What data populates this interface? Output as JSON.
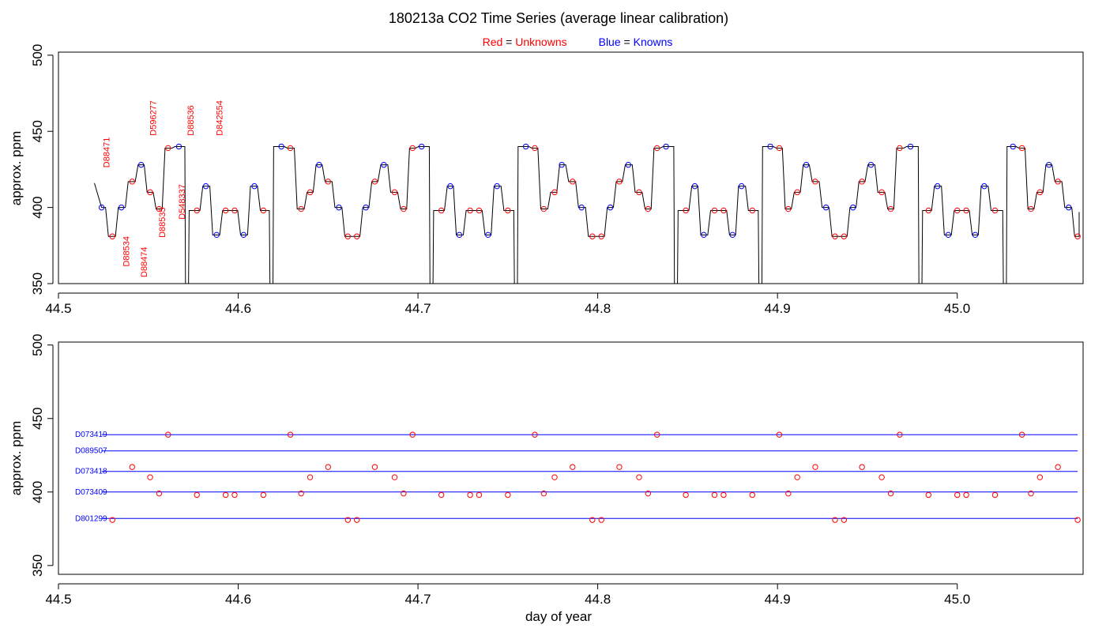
{
  "chart_data": [
    {
      "type": "line",
      "title": "180213a   CO2 Time Series (average linear calibration)",
      "subtitle": {
        "red": {
          "word": "Red",
          "eq": " = ",
          "label": "Unknowns",
          "color": "#ff0000"
        },
        "blue": {
          "word": "Blue",
          "eq": " = ",
          "label": "Knowns",
          "color": "#0000ff"
        }
      },
      "ylabel": "approx. ppm",
      "xlabel": "",
      "xlim": [
        44.5,
        45.07
      ],
      "ylim": [
        350,
        502
      ],
      "xticks": [
        "44.5",
        "44.6",
        "44.7",
        "44.8",
        "44.9",
        "45.0"
      ],
      "yticks": [
        "350",
        "400",
        "450",
        "500"
      ],
      "grid": false,
      "trace_color": "#000000",
      "series": [
        {
          "name": "Unknowns",
          "color": "#ff0000",
          "x": [
            44.53,
            44.541,
            44.551,
            44.556,
            44.561,
            44.577,
            44.593,
            44.598,
            44.614,
            44.629,
            44.635,
            44.64,
            44.65,
            44.661,
            44.666,
            44.676,
            44.687,
            44.692,
            44.697,
            44.713,
            44.729,
            44.734,
            44.75,
            44.765,
            44.77,
            44.776,
            44.786,
            44.797,
            44.802,
            44.812,
            44.823,
            44.828,
            44.833,
            44.849,
            44.865,
            44.87,
            44.886,
            44.901,
            44.906,
            44.911,
            44.921,
            44.932,
            44.937,
            44.947,
            44.958,
            44.963,
            44.968,
            44.984,
            45.0,
            45.005,
            45.021,
            45.036,
            45.041,
            45.046,
            45.056,
            45.067
          ],
          "y": [
            381,
            417,
            410,
            399,
            439,
            398,
            398,
            398,
            398,
            439,
            399,
            410,
            417,
            381,
            381,
            417,
            410,
            399,
            439,
            398,
            398,
            398,
            398,
            439,
            399,
            410,
            417,
            381,
            381,
            417,
            410,
            399,
            439,
            398,
            398,
            398,
            398,
            439,
            399,
            410,
            417,
            381,
            381,
            417,
            410,
            399,
            439,
            398,
            398,
            398,
            398,
            439,
            399,
            410,
            417,
            381
          ]
        },
        {
          "name": "Knowns",
          "color": "#0000ff",
          "x": [
            44.524,
            44.535,
            44.546,
            44.567,
            44.582,
            44.588,
            44.603,
            44.609,
            44.624,
            44.645,
            44.656,
            44.671,
            44.681,
            44.702,
            44.718,
            44.723,
            44.739,
            44.744,
            44.76,
            44.78,
            44.791,
            44.807,
            44.817,
            44.838,
            44.854,
            44.859,
            44.875,
            44.88,
            44.896,
            44.916,
            44.927,
            44.942,
            44.952,
            44.974,
            44.989,
            44.995,
            45.01,
            45.015,
            45.031,
            45.051,
            45.062
          ],
          "y": [
            400,
            400,
            428,
            440,
            414,
            382,
            382,
            414,
            440,
            428,
            400,
            400,
            428,
            440,
            414,
            382,
            382,
            414,
            440,
            428,
            400,
            400,
            428,
            440,
            414,
            382,
            382,
            414,
            440,
            428,
            400,
            400,
            428,
            440,
            414,
            382,
            382,
            414,
            440,
            428,
            400
          ]
        }
      ],
      "annotations": [
        {
          "text": "D88471",
          "x": 44.53,
          "y": 422
        },
        {
          "text": "D88534",
          "x": 44.541,
          "y": 357
        },
        {
          "text": "D88474",
          "x": 44.551,
          "y": 350
        },
        {
          "text": "D88535",
          "x": 44.561,
          "y": 376
        },
        {
          "text": "D596277",
          "x": 44.556,
          "y": 443
        },
        {
          "text": "D548337",
          "x": 44.572,
          "y": 388
        },
        {
          "text": "D88536",
          "x": 44.577,
          "y": 443
        },
        {
          "text": "D842554",
          "x": 44.593,
          "y": 443
        }
      ]
    },
    {
      "type": "scatter",
      "title": "",
      "xlabel": "day of year",
      "ylabel": "approx. ppm",
      "xlim": [
        44.5,
        45.07
      ],
      "ylim": [
        344,
        502
      ],
      "xticks": [
        "44.5",
        "44.6",
        "44.7",
        "44.8",
        "44.9",
        "45.0"
      ],
      "yticks": [
        "350",
        "400",
        "450",
        "500"
      ],
      "grid": false,
      "reference_lines": [
        {
          "label": "D073419",
          "y": 439,
          "color": "#0000ff"
        },
        {
          "label": "D089507",
          "y": 428,
          "color": "#0000ff"
        },
        {
          "label": "D073418",
          "y": 414,
          "color": "#0000ff"
        },
        {
          "label": "D073409",
          "y": 400,
          "color": "#0000ff"
        },
        {
          "label": "D801299",
          "y": 382,
          "color": "#0000ff"
        }
      ],
      "series": [
        {
          "name": "Unknowns",
          "color": "#ff0000",
          "x": [
            44.53,
            44.541,
            44.551,
            44.556,
            44.561,
            44.577,
            44.593,
            44.598,
            44.614,
            44.629,
            44.635,
            44.64,
            44.65,
            44.661,
            44.666,
            44.676,
            44.687,
            44.692,
            44.697,
            44.713,
            44.729,
            44.734,
            44.75,
            44.765,
            44.77,
            44.776,
            44.786,
            44.797,
            44.802,
            44.812,
            44.823,
            44.828,
            44.833,
            44.849,
            44.865,
            44.87,
            44.886,
            44.901,
            44.906,
            44.911,
            44.921,
            44.932,
            44.937,
            44.947,
            44.958,
            44.963,
            44.968,
            44.984,
            45.0,
            45.005,
            45.021,
            45.036,
            45.041,
            45.046,
            45.056,
            45.067
          ],
          "y": [
            381,
            417,
            410,
            399,
            439,
            398,
            398,
            398,
            398,
            439,
            399,
            410,
            417,
            381,
            381,
            417,
            410,
            399,
            439,
            398,
            398,
            398,
            398,
            439,
            399,
            410,
            417,
            381,
            381,
            417,
            410,
            399,
            439,
            398,
            398,
            398,
            398,
            439,
            399,
            410,
            417,
            381,
            381,
            417,
            410,
            399,
            439,
            398,
            398,
            398,
            398,
            439,
            399,
            410,
            417,
            381
          ]
        }
      ]
    }
  ]
}
